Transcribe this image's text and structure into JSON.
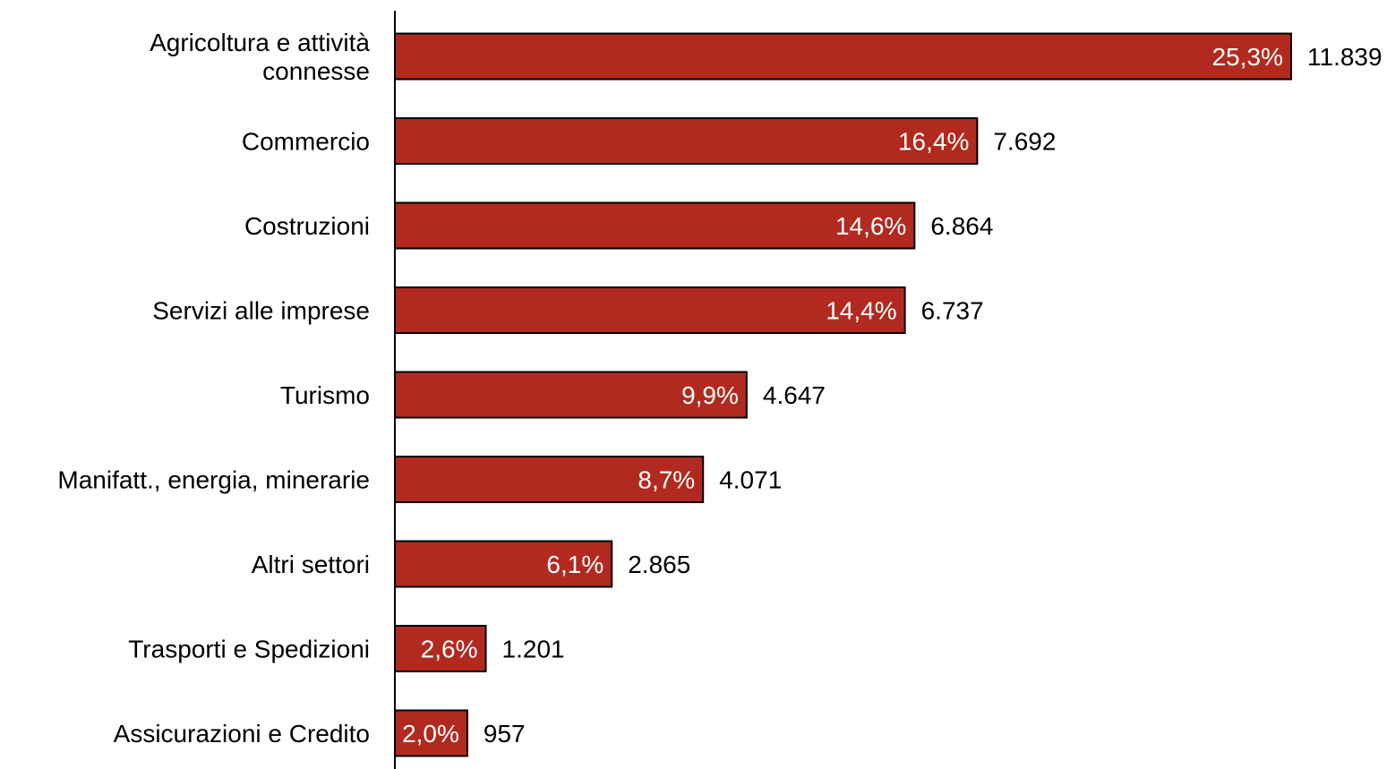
{
  "chart_data": {
    "type": "bar",
    "orientation": "horizontal",
    "categories": [
      "Agricoltura e attività connesse",
      "Commercio",
      "Costruzioni",
      "Servizi alle imprese",
      "Turismo",
      "Manifatt., energia, minerarie",
      "Altri settori",
      "Trasporti e Spedizioni",
      "Assicurazioni e Credito"
    ],
    "category_lines": [
      [
        "Agricoltura e attività",
        "connesse"
      ],
      [
        "Commercio"
      ],
      [
        "Costruzioni"
      ],
      [
        "Servizi alle imprese"
      ],
      [
        "Turismo"
      ],
      [
        "Manifatt., energia, minerarie"
      ],
      [
        "Altri settori"
      ],
      [
        "Trasporti e Spedizioni"
      ],
      [
        "Assicurazioni e Credito"
      ]
    ],
    "values": [
      11839,
      7692,
      6864,
      6737,
      4647,
      4071,
      2865,
      1201,
      957
    ],
    "value_labels": [
      "11.839",
      "7.692",
      "6.864",
      "6.737",
      "4.647",
      "4.071",
      "2.865",
      "1.201",
      "957"
    ],
    "percent_labels": [
      "25,3%",
      "16,4%",
      "14,6%",
      "14,4%",
      "9,9%",
      "8,7%",
      "6,1%",
      "2,6%",
      "2,0%"
    ],
    "xlim": [
      0,
      11839
    ],
    "grid": false,
    "legend": "none",
    "colors": {
      "bar_fill": "#B22A1F",
      "bar_stroke": "#000000",
      "axis": "#000000"
    }
  }
}
